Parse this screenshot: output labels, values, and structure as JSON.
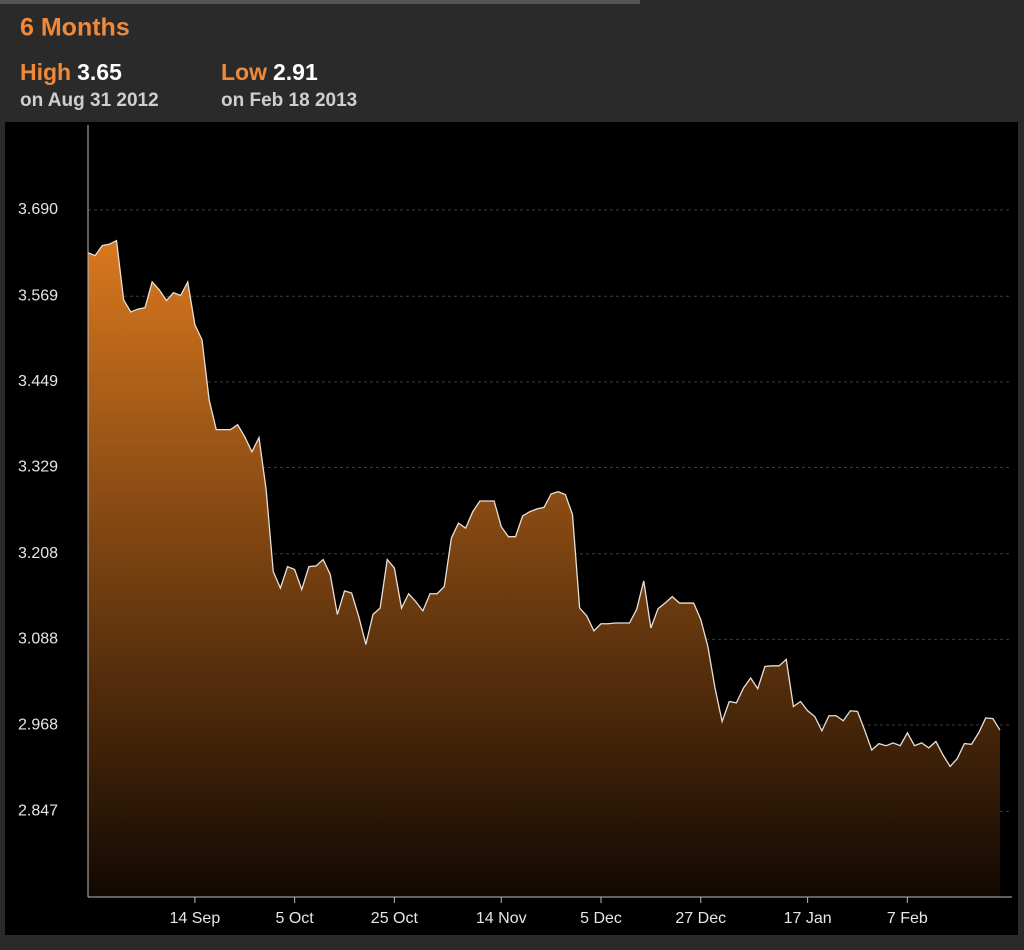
{
  "chart_data": {
    "type": "area",
    "title": "6 Months",
    "high": {
      "label": "High",
      "value": 3.65,
      "date": "on Aug 31 2012"
    },
    "low": {
      "label": "Low",
      "value": 2.91,
      "date": "on Feb 18 2013"
    },
    "color": "#d9781f",
    "line_color": "#e8e0d8",
    "grid": true,
    "ylim": [
      2.727,
      3.809
    ],
    "yticks": [
      {
        "value": 3.69,
        "label": "3.690"
      },
      3.569,
      3.449,
      3.329,
      3.208,
      3.088,
      2.968,
      2.847
    ],
    "categories": [
      null,
      null,
      null,
      null,
      null,
      null,
      null,
      null,
      null,
      null,
      null,
      null,
      null,
      null,
      null,
      "14 Sep",
      null,
      null,
      null,
      null,
      null,
      null,
      null,
      null,
      null,
      null,
      null,
      null,
      null,
      "5 Oct",
      null,
      null,
      null,
      null,
      null,
      null,
      null,
      null,
      null,
      null,
      null,
      null,
      null,
      "25 Oct",
      null,
      null,
      null,
      null,
      null,
      null,
      null,
      null,
      null,
      null,
      null,
      null,
      null,
      null,
      "14 Nov",
      null,
      null,
      null,
      null,
      null,
      null,
      null,
      null,
      null,
      null,
      null,
      null,
      null,
      "5 Dec",
      null,
      null,
      null,
      null,
      null,
      null,
      null,
      null,
      null,
      null,
      null,
      null,
      null,
      "27 Dec",
      null,
      null,
      null,
      null,
      null,
      null,
      null,
      null,
      null,
      null,
      null,
      null,
      null,
      null,
      "17 Jan",
      null,
      null,
      null,
      null,
      null,
      null,
      null,
      null,
      null,
      null,
      null,
      null,
      null,
      "7 Feb",
      null,
      null,
      null,
      null,
      null,
      null,
      null,
      null,
      null,
      null,
      null,
      null,
      null
    ],
    "values": [
      3.63,
      3.626,
      3.64,
      3.642,
      3.647,
      3.564,
      3.547,
      3.551,
      3.553,
      3.589,
      3.578,
      3.563,
      3.574,
      3.57,
      3.589,
      3.529,
      3.508,
      3.424,
      3.382,
      3.382,
      3.382,
      3.389,
      3.372,
      3.351,
      3.371,
      3.298,
      3.183,
      3.16,
      3.19,
      3.186,
      3.158,
      3.19,
      3.191,
      3.2,
      3.179,
      3.123,
      3.156,
      3.153,
      3.12,
      3.081,
      3.123,
      3.132,
      3.2,
      3.188,
      3.132,
      3.152,
      3.141,
      3.128,
      3.152,
      3.152,
      3.162,
      3.23,
      3.251,
      3.244,
      3.267,
      3.282,
      3.282,
      3.282,
      3.246,
      3.232,
      3.232,
      3.261,
      3.267,
      3.271,
      3.273,
      3.292,
      3.295,
      3.291,
      3.263,
      3.132,
      3.121,
      3.1,
      3.11,
      3.11,
      3.111,
      3.111,
      3.111,
      3.13,
      3.17,
      3.104,
      3.131,
      3.139,
      3.148,
      3.139,
      3.139,
      3.139,
      3.116,
      3.078,
      3.02,
      2.973,
      3.001,
      2.999,
      3.02,
      3.034,
      3.019,
      3.05,
      3.051,
      3.051,
      3.06,
      2.994,
      3.001,
      2.988,
      2.98,
      2.96,
      2.981,
      2.981,
      2.974,
      2.988,
      2.987,
      2.961,
      2.933,
      2.942,
      2.939,
      2.943,
      2.939,
      2.957,
      2.939,
      2.943,
      2.936,
      2.945,
      2.926,
      2.91,
      2.921,
      2.942,
      2.941,
      2.957,
      2.978,
      2.977,
      2.961
    ]
  }
}
